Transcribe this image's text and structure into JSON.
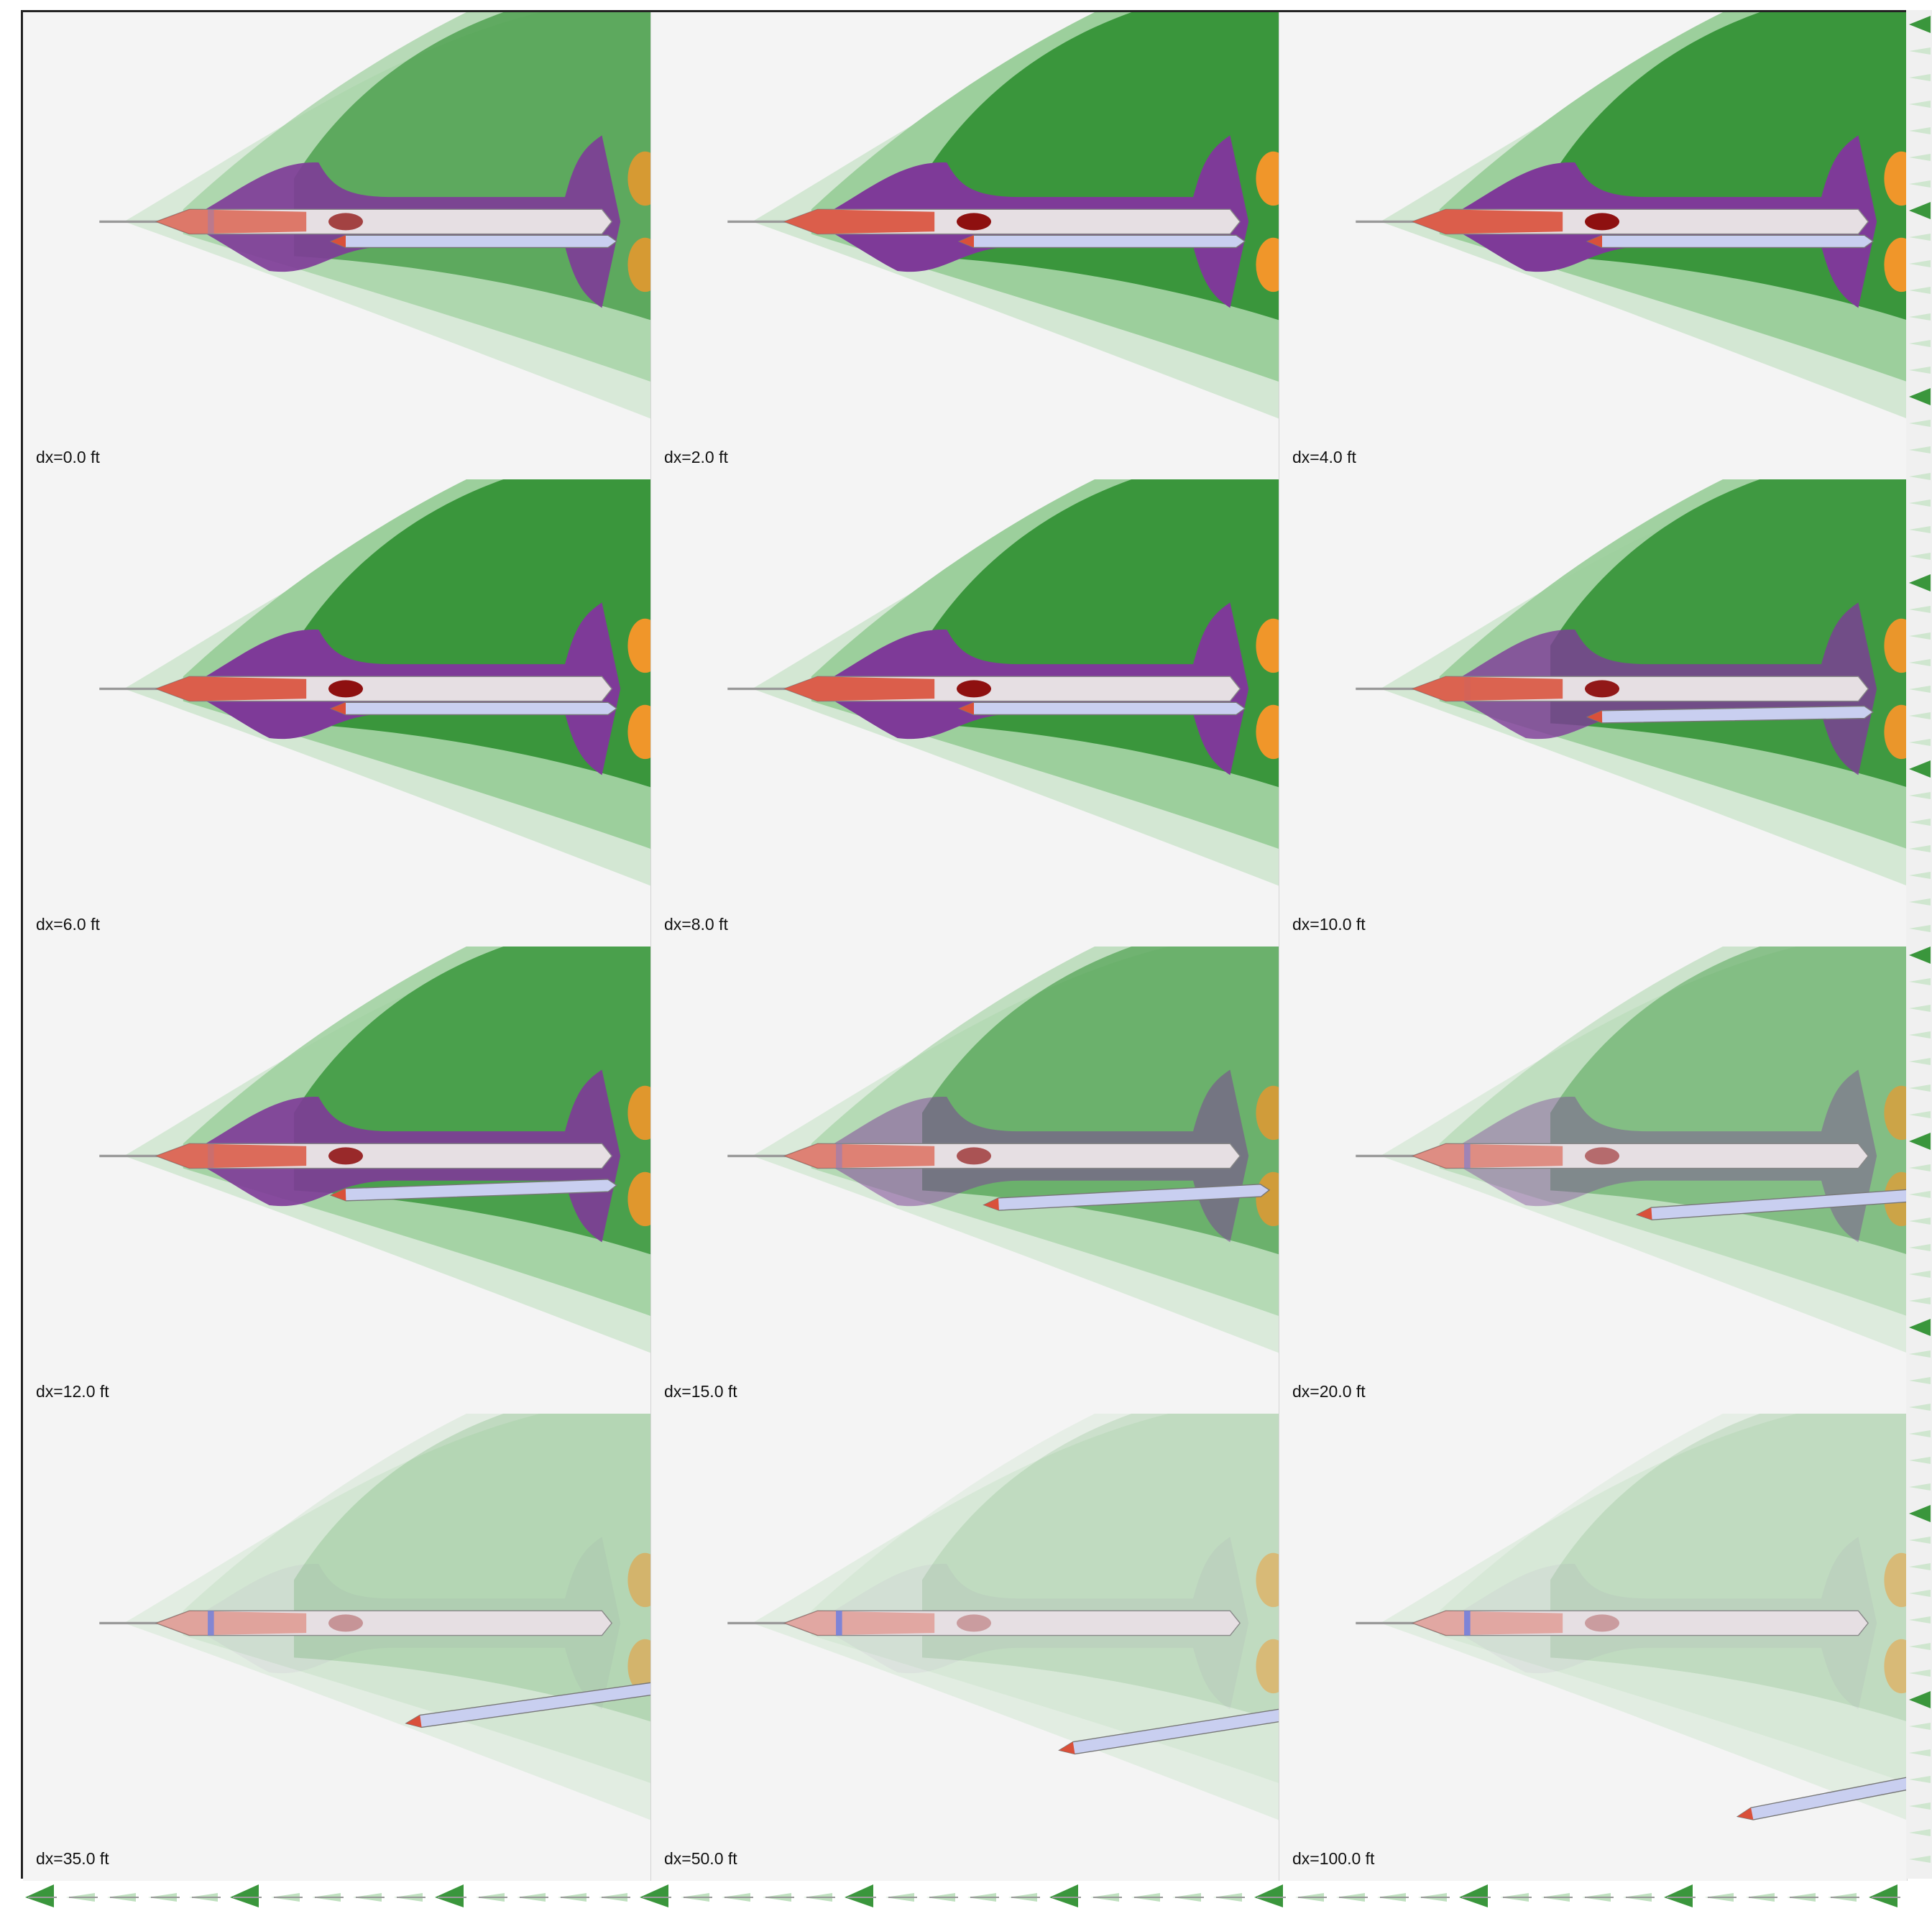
{
  "panels": [
    {
      "label": "dx=0.0 ft"
    },
    {
      "label": "dx=2.0 ft"
    },
    {
      "label": "dx=4.0 ft"
    },
    {
      "label": "dx=6.0 ft"
    },
    {
      "label": "dx=8.0 ft"
    },
    {
      "label": "dx=10.0 ft"
    },
    {
      "label": "dx=12.0 ft"
    },
    {
      "label": "dx=15.0 ft"
    },
    {
      "label": "dx=20.0 ft"
    },
    {
      "label": "dx=35.0 ft"
    },
    {
      "label": "dx=50.0 ft"
    },
    {
      "label": "dx=100.0 ft"
    }
  ]
}
